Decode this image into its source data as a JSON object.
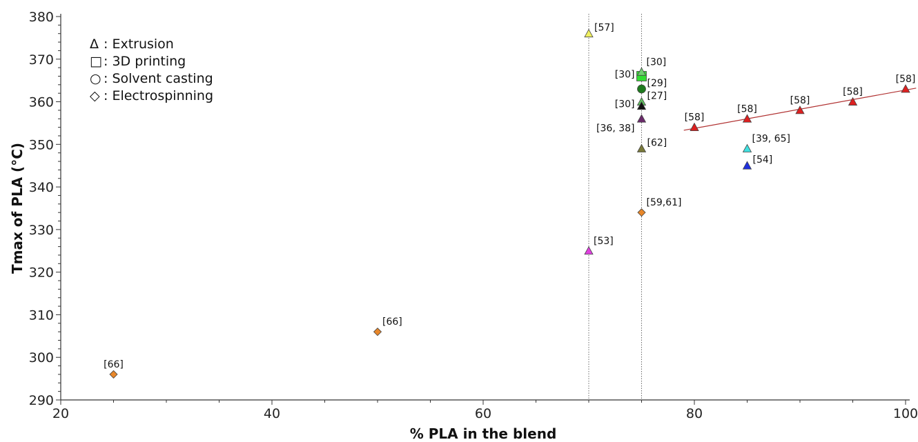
{
  "chart_data": {
    "type": "scatter",
    "title": "",
    "xlabel": "% PLA in the blend",
    "ylabel": "Tmax of PLA (°C)",
    "xlim": [
      20,
      100
    ],
    "ylim": [
      290,
      380
    ],
    "x_ticks": [
      20,
      40,
      60,
      80,
      100
    ],
    "y_ticks": [
      290,
      300,
      310,
      320,
      330,
      340,
      350,
      360,
      370,
      380
    ],
    "grid": false,
    "legend": {
      "placement": "top-left",
      "items": [
        {
          "symbol": "Δ",
          "label": ": Extrusion",
          "marker": "triangle"
        },
        {
          "symbol": "□",
          "label": ": 3D printing",
          "marker": "square"
        },
        {
          "symbol": "○",
          "label": ": Solvent casting",
          "marker": "circle"
        },
        {
          "symbol": "◇",
          "label": ": Electrospinning",
          "marker": "diamond"
        }
      ]
    },
    "reference_lines": [
      {
        "orientation": "vertical",
        "x": 70,
        "style": "dotted"
      },
      {
        "orientation": "vertical",
        "x": 75,
        "style": "dotted"
      }
    ],
    "trend_line": {
      "x": [
        79,
        101
      ],
      "y": [
        353.3,
        363.2
      ],
      "color": "#b03030"
    },
    "points": [
      {
        "x": 25,
        "y": 296,
        "marker": "diamond",
        "color": "#e8872a",
        "label": "[66]",
        "label_pos": "above"
      },
      {
        "x": 50,
        "y": 306,
        "marker": "diamond",
        "color": "#e8872a",
        "label": "[66]",
        "label_pos": "upper-right"
      },
      {
        "x": 70,
        "y": 376,
        "marker": "triangle",
        "color": "#f0f060",
        "label": "[57]",
        "label_pos": "right"
      },
      {
        "x": 70,
        "y": 325,
        "marker": "triangle",
        "color": "#e040e0",
        "label": "[53]",
        "label_pos": "upper-right"
      },
      {
        "x": 75,
        "y": 367,
        "marker": "triangle",
        "color": "#70d070",
        "label": "[30]",
        "label_pos": "upper-right"
      },
      {
        "x": 75,
        "y": 366,
        "marker": "square",
        "color": "#33dd33",
        "label": "[30]",
        "label_pos": "left"
      },
      {
        "x": 75,
        "y": 363,
        "marker": "circle",
        "color": "#1f7a1f",
        "label": "[29]",
        "label_pos": "right"
      },
      {
        "x": 75,
        "y": 360,
        "marker": "triangle",
        "color": "#60c060",
        "label": "[27]",
        "label_pos": "right"
      },
      {
        "x": 75,
        "y": 359,
        "marker": "triangle",
        "color": "#111111",
        "label": "[30]",
        "label_pos": "left"
      },
      {
        "x": 75,
        "y": 356,
        "marker": "triangle",
        "color": "#6b2a6b",
        "label": "[36, 38]",
        "label_pos": "lower-left"
      },
      {
        "x": 75,
        "y": 349,
        "marker": "triangle",
        "color": "#7a7a3a",
        "label": "[62]",
        "label_pos": "right"
      },
      {
        "x": 75,
        "y": 334,
        "marker": "diamond",
        "color": "#e8872a",
        "label": "[59,61]",
        "label_pos": "upper-right"
      },
      {
        "x": 80,
        "y": 354,
        "marker": "triangle",
        "color": "#dd2020",
        "label": "[58]",
        "label_pos": "above"
      },
      {
        "x": 85,
        "y": 356,
        "marker": "triangle",
        "color": "#dd2020",
        "label": "[58]",
        "label_pos": "above"
      },
      {
        "x": 90,
        "y": 358,
        "marker": "triangle",
        "color": "#dd2020",
        "label": "[58]",
        "label_pos": "above"
      },
      {
        "x": 95,
        "y": 360,
        "marker": "triangle",
        "color": "#dd2020",
        "label": "[58]",
        "label_pos": "above"
      },
      {
        "x": 100,
        "y": 363,
        "marker": "triangle",
        "color": "#dd2020",
        "label": "[58]",
        "label_pos": "above"
      },
      {
        "x": 85,
        "y": 349,
        "marker": "triangle",
        "color": "#40e0e0",
        "label": "[39, 65]",
        "label_pos": "upper-right"
      },
      {
        "x": 85,
        "y": 345,
        "marker": "triangle",
        "color": "#2030dd",
        "label": "[54]",
        "label_pos": "right"
      }
    ]
  }
}
